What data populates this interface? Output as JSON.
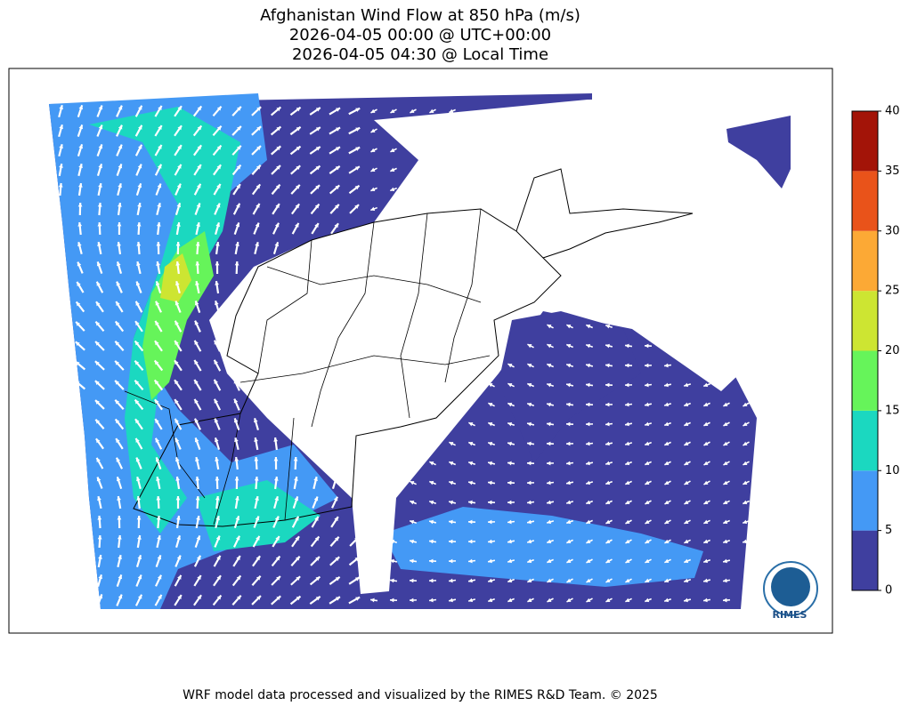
{
  "title_lines": [
    "Afghanistan Wind Flow at 850 hPa (m/s)",
    "2026-04-05 00:00 @ UTC+00:00",
    "2026-04-05 04:30 @ Local Time"
  ],
  "colorbar": {
    "ticks": [
      0,
      5,
      10,
      15,
      20,
      25,
      30,
      35,
      40
    ],
    "colors": [
      "#3f3f9f",
      "#4499f5",
      "#1bd8c0",
      "#66f45a",
      "#cde532",
      "#fca935",
      "#e9531a",
      "#a31408"
    ]
  },
  "logo": "RIMES",
  "footer": "WRF model data processed and visualized by the RIMES R&D Team. © 2025"
}
